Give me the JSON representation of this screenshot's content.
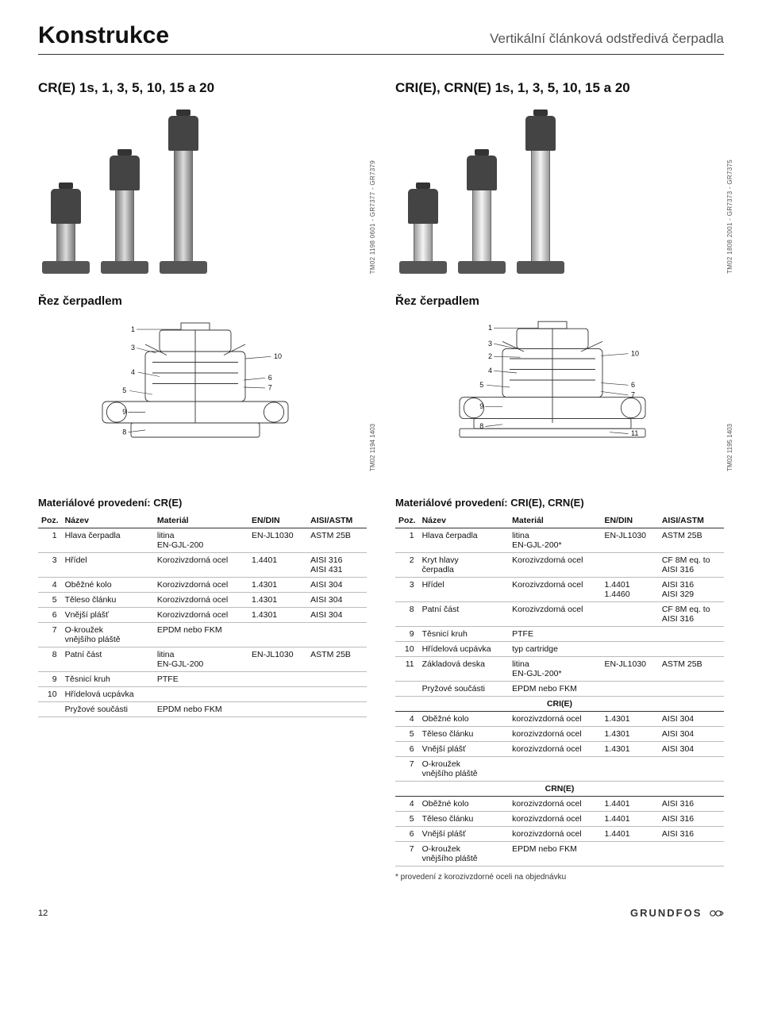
{
  "header": {
    "title": "Konstrukce",
    "subtitle": "Vertikální článková odstředivá čerpadla"
  },
  "left": {
    "model": "CR(E) 1s, 1, 3, 5, 10, 15 a 20",
    "tm_img": "TM02 1198 0601 - GR7377 - GR7379",
    "section_title": "Řez čerpadlem",
    "tm_diag": "TM02 1194 1403",
    "diag_labels": [
      "1",
      "3",
      "4",
      "5",
      "9",
      "8",
      "10",
      "6",
      "7"
    ],
    "mat_title": "Materiálové provedení: CR(E)",
    "table": {
      "columns": [
        "Poz.",
        "Název",
        "Materiál",
        "EN/DIN",
        "AISI/ASTM"
      ],
      "rows": [
        [
          "1",
          "Hlava čerpadla",
          "litina\nEN-GJL-200",
          "EN-JL1030",
          "ASTM 25B"
        ],
        [
          "3",
          "Hřídel",
          "Korozivzdorná ocel",
          "1.4401",
          "AISI 316\nAISI 431"
        ],
        [
          "4",
          "Oběžné kolo",
          "Korozivzdorná ocel",
          "1.4301",
          "AISI 304"
        ],
        [
          "5",
          "Těleso článku",
          "Korozivzdorná ocel",
          "1.4301",
          "AISI 304"
        ],
        [
          "6",
          "Vnější plášť",
          "Korozivzdorná ocel",
          "1.4301",
          "AISI 304"
        ],
        [
          "7",
          "O-kroužek\nvnějšího pláště",
          "EPDM nebo FKM",
          "",
          ""
        ],
        [
          "8",
          "Patní část",
          "litina\nEN-GJL-200",
          "EN-JL1030",
          "ASTM 25B"
        ],
        [
          "9",
          "Těsnicí kruh",
          "PTFE",
          "",
          ""
        ],
        [
          "10",
          "Hřídelová ucpávka",
          "",
          "",
          ""
        ],
        [
          "",
          "Pryžové součásti",
          "EPDM nebo FKM",
          "",
          ""
        ]
      ]
    }
  },
  "right": {
    "model": "CRI(E), CRN(E) 1s, 1, 3, 5, 10, 15 a 20",
    "tm_img": "TM02 1808 2001 - GR7373 - GR7375",
    "section_title": "Řez čerpadlem",
    "tm_diag": "TM02 1195 1403",
    "diag_labels": [
      "1",
      "3",
      "2",
      "4",
      "5",
      "9",
      "8",
      "10",
      "6",
      "7",
      "11"
    ],
    "mat_title": "Materiálové provedení: CRI(E), CRN(E)",
    "table": {
      "columns": [
        "Poz.",
        "Název",
        "Materiál",
        "EN/DIN",
        "AISI/ASTM"
      ],
      "rows": [
        [
          "1",
          "Hlava čerpadla",
          "litina\nEN-GJL-200*",
          "EN-JL1030",
          "ASTM 25B"
        ],
        [
          "2",
          "Kryt hlavy\nčerpadla",
          "Korozivzdorná ocel",
          "",
          "CF 8M eq. to\nAISI 316"
        ],
        [
          "3",
          "Hřídel",
          "Korozivzdorná ocel",
          "1.4401\n1.4460",
          "AISI 316\nAISI 329"
        ],
        [
          "8",
          "Patní část",
          "Korozivzdorná ocel",
          "",
          "CF 8M eq. to\nAISI 316"
        ],
        [
          "9",
          "Těsnicí kruh",
          "PTFE",
          "",
          ""
        ],
        [
          "10",
          "Hřídelová ucpávka",
          "typ cartridge",
          "",
          ""
        ],
        [
          "11",
          "Základová deska",
          "litina\nEN-GJL-200*",
          "EN-JL1030",
          "ASTM 25B"
        ],
        [
          "",
          "Pryžové součásti",
          "EPDM nebo FKM",
          "",
          ""
        ]
      ],
      "sub1_title": "CRI(E)",
      "sub1_rows": [
        [
          "4",
          "Oběžné kolo",
          "korozivzdorná ocel",
          "1.4301",
          "AISI 304"
        ],
        [
          "5",
          "Těleso článku",
          "korozivzdorná ocel",
          "1.4301",
          "AISI 304"
        ],
        [
          "6",
          "Vnější plášť",
          "korozivzdorná ocel",
          "1.4301",
          "AISI 304"
        ],
        [
          "7",
          "O-kroužek\nvnějšího pláště",
          "",
          "",
          ""
        ]
      ],
      "sub2_title": "CRN(E)",
      "sub2_rows": [
        [
          "4",
          "Oběžné kolo",
          "korozivzdorná ocel",
          "1.4401",
          "AISI 316"
        ],
        [
          "5",
          "Těleso článku",
          "korozivzdorná ocel",
          "1.4401",
          "AISI 316"
        ],
        [
          "6",
          "Vnější plášť",
          "korozivzdorná ocel",
          "1.4401",
          "AISI 316"
        ],
        [
          "7",
          "O-kroužek\nvnějšího pláště",
          "EPDM nebo FKM",
          "",
          ""
        ]
      ]
    },
    "footnote": "* provedení z korozivzdorné oceli na objednávku"
  },
  "footer": {
    "page": "12",
    "brand": "GRUNDFOS"
  },
  "colors": {
    "text": "#111111",
    "rule": "#333333",
    "row_border": "#bbbbbb",
    "motor": "#444444",
    "steel_light": "#f0f0f0",
    "steel_dark": "#888888"
  },
  "pump_heights": {
    "cr": [
      48,
      90,
      140
    ],
    "cri": [
      48,
      90,
      140
    ]
  }
}
